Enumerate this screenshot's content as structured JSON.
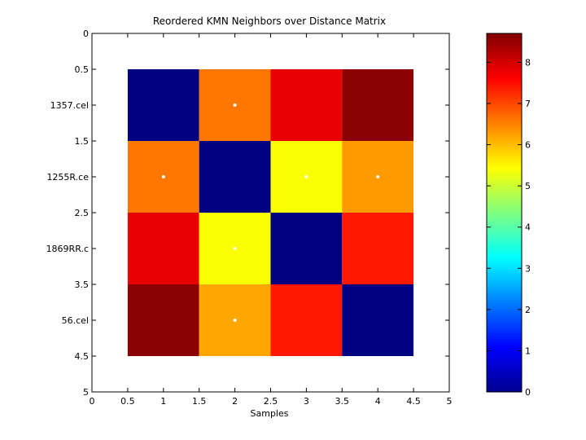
{
  "chart_data": {
    "type": "heatmap",
    "title": "Reordered KMN Neighbors over Distance Matrix",
    "xlabel": "Samples",
    "ylabel": "",
    "xlim": [
      0,
      5
    ],
    "ylim": [
      0,
      5
    ],
    "x_ticks": [
      0,
      0.5,
      1,
      1.5,
      2,
      2.5,
      3,
      3.5,
      4,
      4.5,
      5
    ],
    "y_ticks": [
      0,
      0.5,
      1,
      1.5,
      2,
      2.5,
      3,
      3.5,
      4,
      4.5,
      5
    ],
    "y_tick_labels": [
      "0",
      "0.5",
      "1357.cel",
      "1.5",
      "1255R.ce",
      "2.5",
      "1869RR.c",
      "3.5",
      "56.cel",
      "4.5",
      "5"
    ],
    "row_labels": [
      "1357.cel",
      "1255R.ce",
      "1869RR.c",
      "56.cel"
    ],
    "values": [
      [
        0.0,
        6.6,
        7.8,
        8.6
      ],
      [
        6.6,
        0.0,
        5.4,
        6.3
      ],
      [
        7.8,
        5.4,
        0.0,
        7.4
      ],
      [
        8.6,
        6.2,
        7.4,
        0.0
      ]
    ],
    "neighbor_markers": [
      {
        "row": 1,
        "col": 2
      },
      {
        "row": 2,
        "col": 1
      },
      {
        "row": 2,
        "col": 3
      },
      {
        "row": 2,
        "col": 4
      },
      {
        "row": 3,
        "col": 2
      },
      {
        "row": 4,
        "col": 2
      }
    ],
    "colormap": "jet",
    "color_range": [
      0,
      8.7
    ],
    "colorbar_ticks": [
      0,
      1,
      2,
      3,
      4,
      5,
      6,
      7,
      8
    ],
    "marker_color": "#ffffff",
    "grid": false,
    "legend": "colorbar-right"
  }
}
